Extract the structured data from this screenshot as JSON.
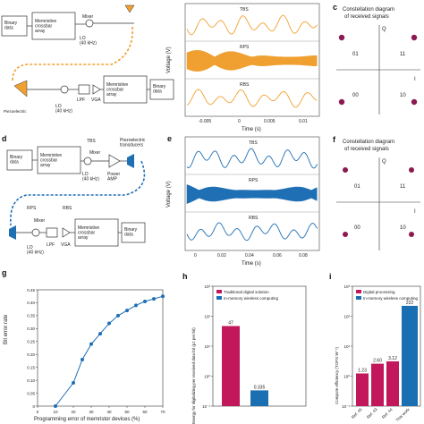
{
  "panels": {
    "a": {
      "label": "",
      "blocks": {
        "binary1": "Binary\ndata",
        "crossbar1": "Memristive\ncrossbar\narray",
        "mixer": "Mixer",
        "lo": "LO\n(40 kHz)",
        "lpf": "LPF",
        "vga": "VGA",
        "crossbar2": "Memristive\ncrossbar\narray",
        "binary2": "Binary\ndata",
        "pin": "Piezoelectric"
      }
    },
    "b": {
      "label": "",
      "traces": [
        "TBS",
        "RPS",
        "RBS"
      ],
      "ylabel": "Voltage (V)",
      "xlabel": "Time (s)",
      "xticks": [
        "-0.005",
        "0",
        "0.005",
        "0.01"
      ]
    },
    "c": {
      "label": "c",
      "title": "Constellation diagram\nof received signals",
      "axis_q": "Q",
      "axis_i": "I",
      "quadrants": [
        "01",
        "11",
        "00",
        "10"
      ]
    },
    "d": {
      "label": "d",
      "blocks": {
        "binary1": "Binary\ndata",
        "crossbar1": "Memristive\ncrossbar\narray",
        "tbs": "TBS",
        "mixer": "Mixer",
        "lo": "LO\n(40 kHz)",
        "pa": "Power\nAMP",
        "piezo": "Piezoelectric\ntransducers",
        "rps": "RPS",
        "rbs": "RBS",
        "mixer2": "Mixer",
        "lpf": "LPF",
        "vga": "VGA",
        "lo2": "LO\n(40 kHz)",
        "crossbar2": "Memristive\ncrossbar\narray",
        "binary2": "Binary\ndata"
      }
    },
    "e": {
      "label": "e",
      "traces": [
        "TBS",
        "RPS",
        "RBS"
      ],
      "ylabel": "Voltage (V)",
      "xlabel": "Time (s)",
      "xticks": [
        "0",
        "0.02",
        "0.04",
        "0.06",
        "0.08"
      ]
    },
    "f": {
      "label": "f",
      "title": "Constellation diagram\nof received signals",
      "axis_q": "Q",
      "axis_i": "I",
      "quadrants": [
        "01",
        "11",
        "00",
        "10"
      ]
    },
    "g": {
      "label": "g",
      "ylabel": "Bit error rate",
      "xlabel": "Programming error of memristor devices (%)"
    },
    "h": {
      "label": "h",
      "ylabel": "Energy for digitalizing per received data bit (pJ per bit)"
    },
    "i": {
      "label": "i",
      "ylabel": "Compute efficiency (TOPS W⁻¹)"
    }
  },
  "chart_data": [
    {
      "type": "line",
      "xlabel": "Programming error of memristor devices (%)",
      "ylabel": "Bit error rate",
      "x": [
        10,
        20,
        25,
        30,
        35,
        40,
        45,
        50,
        55,
        60,
        65,
        70
      ],
      "y": [
        0.0,
        0.09,
        0.18,
        0.24,
        0.28,
        0.32,
        0.35,
        0.37,
        0.39,
        0.405,
        0.415,
        0.425
      ],
      "xlim": [
        0,
        70
      ],
      "ylim": [
        0,
        0.45
      ],
      "xticks": [
        "0",
        "10",
        "20",
        "30",
        "40",
        "50",
        "60",
        "70"
      ],
      "yticks": [
        "0",
        "0.05",
        "0.10",
        "0.15",
        "0.20",
        "0.25",
        "0.30",
        "0.35",
        "0.40",
        "0.45"
      ],
      "color": "#1f6fb5"
    },
    {
      "type": "bar",
      "ylabel": "Energy for digitalizing per received data bit (pJ per bit)",
      "scale": "log",
      "ylim_exp": [
        -1,
        3
      ],
      "yticks": [
        "10⁻¹",
        "10⁰",
        "10¹",
        "10²",
        "10³"
      ],
      "legend": [
        "Traditional digital solution",
        "In-memory wireless computing"
      ],
      "series_colors": [
        "#c2185b",
        "#1a6fb3"
      ],
      "values": [
        47,
        0.335
      ],
      "value_labels": [
        "47",
        "0.335"
      ]
    },
    {
      "type": "bar",
      "ylabel": "Compute efficiency (TOPS W⁻¹)",
      "scale": "log",
      "ylim_exp": [
        -1,
        3
      ],
      "yticks": [
        "10⁻¹",
        "10⁰",
        "10¹",
        "10²",
        "10³"
      ],
      "legend": [
        "Digital processing",
        "In-memory wireless computing"
      ],
      "series_colors": [
        "#c2185b",
        "#1a6fb3"
      ],
      "categories": [
        "Ref. 45",
        "Ref. 43",
        "Ref. 44",
        "This work"
      ],
      "values": [
        1.23,
        2.6,
        3.12,
        222
      ],
      "value_labels": [
        "1.23",
        "2.60",
        "3.12",
        "222"
      ],
      "colors": [
        "#c2185b",
        "#c2185b",
        "#c2185b",
        "#1a6fb3"
      ]
    }
  ],
  "colors": {
    "orange": "#f0a030",
    "blue": "#1f6fb5",
    "magenta": "#c2185b",
    "dot": "#8b1a50"
  }
}
